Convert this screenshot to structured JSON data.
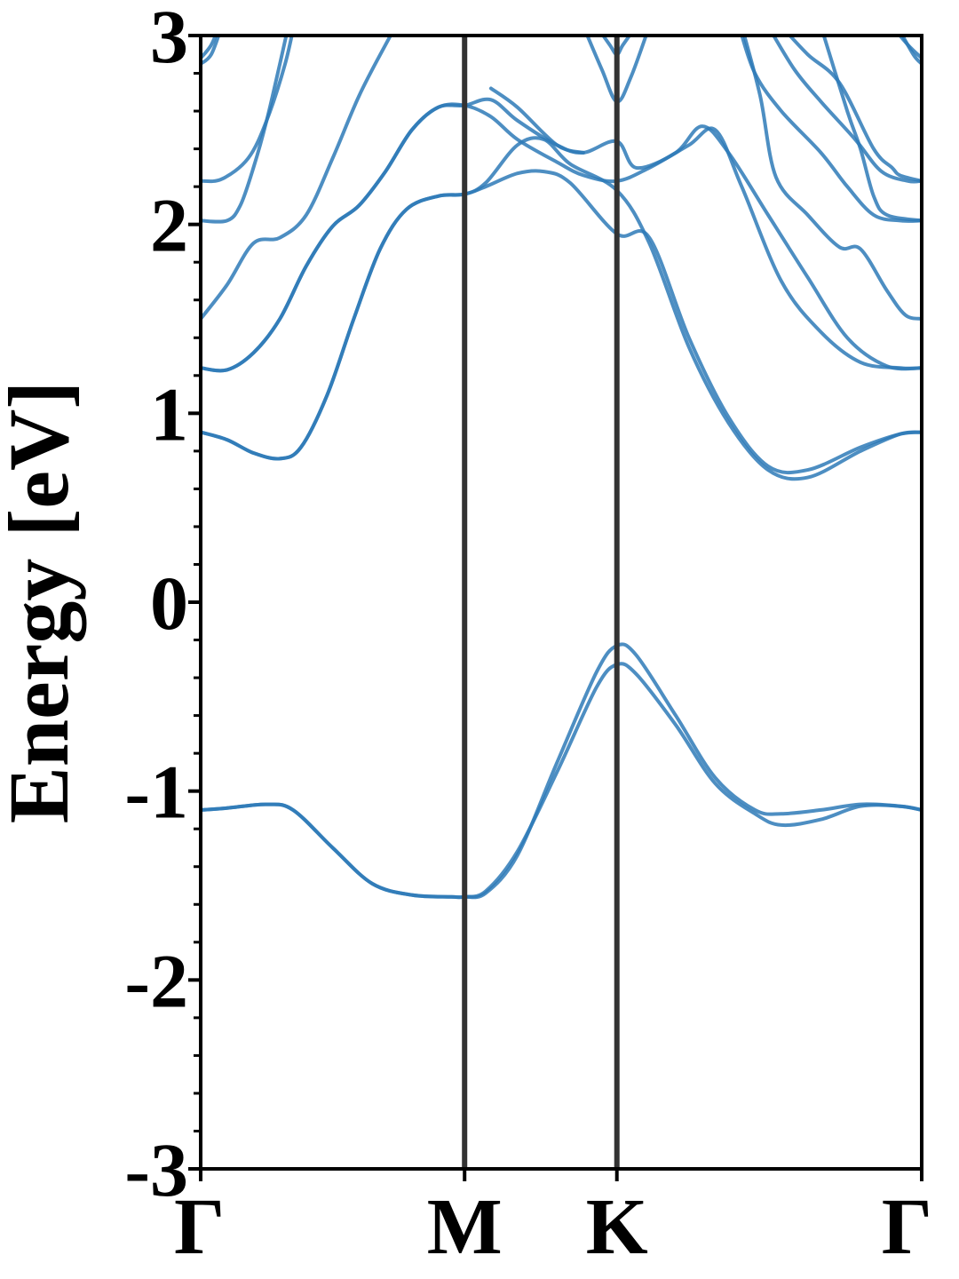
{
  "chart_data": {
    "type": "line",
    "title": "",
    "xlabel": "",
    "ylabel": "Energy [eV]",
    "ylim": [
      -3,
      3
    ],
    "yticks": [
      -3,
      -2,
      -1,
      0,
      1,
      2,
      3
    ],
    "ytick_labels": [
      "-3",
      "-2",
      "-1",
      "0",
      "1",
      "2",
      "3"
    ],
    "x_range": [
      0,
      2.7
    ],
    "kpoints": [
      {
        "label": "Γ",
        "x": 0
      },
      {
        "label": "M",
        "x": 1.0
      },
      {
        "label": "K",
        "x": 1.577
      },
      {
        "label": "Γ",
        "x": 2.732
      }
    ],
    "grid": false,
    "line_color": "#2e7ab7",
    "divider_color": "#333333",
    "series": [
      {
        "values": [
          [
            0,
            -1.1
          ],
          [
            0.1,
            -1.09
          ],
          [
            0.25,
            -1.07
          ],
          [
            0.35,
            -1.1
          ],
          [
            0.5,
            -1.3
          ],
          [
            0.65,
            -1.49
          ],
          [
            0.8,
            -1.55
          ],
          [
            0.95,
            -1.56
          ],
          [
            1.0,
            -1.56
          ],
          [
            1.08,
            -1.53
          ],
          [
            1.2,
            -1.32
          ],
          [
            1.35,
            -0.9
          ],
          [
            1.5,
            -0.45
          ],
          [
            1.577,
            -0.33
          ],
          [
            1.65,
            -0.38
          ],
          [
            1.8,
            -0.65
          ],
          [
            1.95,
            -0.96
          ],
          [
            2.1,
            -1.12
          ],
          [
            2.2,
            -1.18
          ],
          [
            2.35,
            -1.15
          ],
          [
            2.5,
            -1.08
          ],
          [
            2.65,
            -1.08
          ],
          [
            2.732,
            -1.1
          ]
        ]
      },
      {
        "values": [
          [
            0,
            -1.1
          ],
          [
            0.1,
            -1.09
          ],
          [
            0.25,
            -1.07
          ],
          [
            0.35,
            -1.1
          ],
          [
            0.5,
            -1.3
          ],
          [
            0.65,
            -1.49
          ],
          [
            0.8,
            -1.55
          ],
          [
            0.95,
            -1.56
          ],
          [
            1.0,
            -1.56
          ],
          [
            1.08,
            -1.54
          ],
          [
            1.2,
            -1.34
          ],
          [
            1.35,
            -0.85
          ],
          [
            1.5,
            -0.37
          ],
          [
            1.577,
            -0.23
          ],
          [
            1.65,
            -0.28
          ],
          [
            1.8,
            -0.6
          ],
          [
            1.95,
            -0.93
          ],
          [
            2.1,
            -1.1
          ],
          [
            2.2,
            -1.12
          ],
          [
            2.35,
            -1.1
          ],
          [
            2.5,
            -1.07
          ],
          [
            2.65,
            -1.08
          ],
          [
            2.732,
            -1.1
          ]
        ]
      },
      {
        "values": [
          [
            0,
            0.9
          ],
          [
            0.1,
            0.86
          ],
          [
            0.2,
            0.79
          ],
          [
            0.3,
            0.76
          ],
          [
            0.38,
            0.82
          ],
          [
            0.48,
            1.1
          ],
          [
            0.58,
            1.5
          ],
          [
            0.68,
            1.87
          ],
          [
            0.78,
            2.08
          ],
          [
            0.9,
            2.15
          ],
          [
            1.0,
            2.16
          ],
          [
            1.08,
            2.2
          ],
          [
            1.2,
            2.27
          ],
          [
            1.3,
            2.28
          ],
          [
            1.4,
            2.22
          ],
          [
            1.577,
            1.95
          ],
          [
            1.7,
            1.93
          ],
          [
            1.85,
            1.4
          ],
          [
            2.0,
            0.98
          ],
          [
            2.15,
            0.72
          ],
          [
            2.3,
            0.7
          ],
          [
            2.5,
            0.82
          ],
          [
            2.65,
            0.89
          ],
          [
            2.732,
            0.9
          ]
        ]
      },
      {
        "values": [
          [
            0,
            0.9
          ],
          [
            0.1,
            0.86
          ],
          [
            0.2,
            0.79
          ],
          [
            0.3,
            0.76
          ],
          [
            0.38,
            0.82
          ],
          [
            0.48,
            1.1
          ],
          [
            0.58,
            1.5
          ],
          [
            0.68,
            1.87
          ],
          [
            0.78,
            2.08
          ],
          [
            0.9,
            2.15
          ],
          [
            1.0,
            2.16
          ],
          [
            1.08,
            2.22
          ],
          [
            1.2,
            2.42
          ],
          [
            1.3,
            2.45
          ],
          [
            1.4,
            2.32
          ],
          [
            1.577,
            2.18
          ],
          [
            1.7,
            1.9
          ],
          [
            1.85,
            1.35
          ],
          [
            2.0,
            0.95
          ],
          [
            2.15,
            0.7
          ],
          [
            2.3,
            0.66
          ],
          [
            2.5,
            0.8
          ],
          [
            2.65,
            0.89
          ],
          [
            2.732,
            0.9
          ]
        ]
      },
      {
        "values": [
          [
            0,
            1.24
          ],
          [
            0.1,
            1.23
          ],
          [
            0.2,
            1.32
          ],
          [
            0.3,
            1.5
          ],
          [
            0.4,
            1.78
          ],
          [
            0.5,
            1.99
          ],
          [
            0.6,
            2.1
          ],
          [
            0.7,
            2.28
          ],
          [
            0.8,
            2.5
          ],
          [
            0.9,
            2.62
          ],
          [
            1.0,
            2.63
          ],
          [
            1.1,
            2.57
          ],
          [
            1.2,
            2.45
          ],
          [
            1.35,
            2.33
          ],
          [
            1.45,
            2.26
          ],
          [
            1.577,
            2.23
          ],
          [
            1.7,
            2.3
          ],
          [
            1.85,
            2.42
          ],
          [
            1.95,
            2.5
          ],
          [
            2.05,
            2.2
          ],
          [
            2.2,
            1.7
          ],
          [
            2.35,
            1.43
          ],
          [
            2.5,
            1.27
          ],
          [
            2.65,
            1.24
          ],
          [
            2.732,
            1.24
          ]
        ]
      },
      {
        "values": [
          [
            0,
            1.24
          ],
          [
            0.1,
            1.23
          ],
          [
            0.2,
            1.32
          ],
          [
            0.3,
            1.5
          ],
          [
            0.4,
            1.78
          ],
          [
            0.5,
            1.99
          ],
          [
            0.6,
            2.1
          ],
          [
            0.7,
            2.28
          ],
          [
            0.8,
            2.5
          ],
          [
            0.9,
            2.62
          ],
          [
            1.0,
            2.63
          ],
          [
            1.1,
            2.66
          ],
          [
            1.2,
            2.55
          ],
          [
            1.35,
            2.42
          ],
          [
            1.45,
            2.38
          ],
          [
            1.577,
            2.44
          ],
          [
            1.65,
            2.3
          ],
          [
            1.8,
            2.38
          ],
          [
            1.9,
            2.52
          ],
          [
            2.0,
            2.38
          ],
          [
            2.15,
            2.05
          ],
          [
            2.3,
            1.72
          ],
          [
            2.45,
            1.4
          ],
          [
            2.6,
            1.25
          ],
          [
            2.732,
            1.24
          ]
        ]
      },
      {
        "values": [
          [
            0,
            1.5
          ],
          [
            0.1,
            1.68
          ],
          [
            0.2,
            1.9
          ],
          [
            0.3,
            1.93
          ],
          [
            0.4,
            2.05
          ],
          [
            0.5,
            2.35
          ],
          [
            0.6,
            2.68
          ],
          [
            0.7,
            2.95
          ],
          [
            0.76,
            3.1
          ]
        ]
      },
      {
        "values": [
          [
            0,
            2.02
          ],
          [
            0.1,
            2.02
          ],
          [
            0.15,
            2.1
          ],
          [
            0.2,
            2.3
          ],
          [
            0.25,
            2.55
          ],
          [
            0.3,
            2.85
          ],
          [
            0.34,
            3.1
          ]
        ]
      },
      {
        "values": [
          [
            0,
            2.23
          ],
          [
            0.08,
            2.24
          ],
          [
            0.18,
            2.35
          ],
          [
            0.25,
            2.55
          ],
          [
            0.32,
            2.85
          ],
          [
            0.36,
            3.1
          ]
        ]
      },
      {
        "values": [
          [
            1.1,
            2.72
          ],
          [
            1.2,
            2.62
          ],
          [
            1.35,
            2.42
          ],
          [
            1.45,
            2.38
          ]
        ]
      },
      {
        "values": [
          [
            0,
            2.85
          ],
          [
            0.04,
            2.9
          ],
          [
            0.08,
            3.05
          ]
        ]
      },
      {
        "values": [
          [
            0,
            2.88
          ],
          [
            0.04,
            2.95
          ],
          [
            0.07,
            3.05
          ]
        ]
      },
      {
        "values": [
          [
            1.45,
            3.05
          ],
          [
            1.52,
            2.82
          ],
          [
            1.577,
            2.65
          ],
          [
            1.63,
            2.78
          ],
          [
            1.7,
            3.05
          ]
        ]
      },
      {
        "values": [
          [
            1.5,
            3.05
          ],
          [
            1.55,
            2.95
          ],
          [
            1.577,
            2.9
          ],
          [
            1.6,
            2.95
          ],
          [
            1.65,
            3.05
          ]
        ]
      },
      {
        "values": [
          [
            2.04,
            3.05
          ],
          [
            2.1,
            2.8
          ],
          [
            2.2,
            2.6
          ],
          [
            2.35,
            2.38
          ],
          [
            2.45,
            2.2
          ],
          [
            2.55,
            2.05
          ],
          [
            2.65,
            2.02
          ],
          [
            2.732,
            2.02
          ]
        ]
      },
      {
        "values": [
          [
            2.05,
            3.05
          ],
          [
            2.12,
            2.68
          ],
          [
            2.18,
            2.25
          ],
          [
            2.3,
            2.05
          ],
          [
            2.42,
            1.88
          ],
          [
            2.5,
            1.87
          ],
          [
            2.6,
            1.65
          ],
          [
            2.67,
            1.52
          ],
          [
            2.732,
            1.5
          ]
        ]
      },
      {
        "values": [
          [
            2.15,
            3.05
          ],
          [
            2.25,
            2.82
          ],
          [
            2.35,
            2.65
          ],
          [
            2.48,
            2.45
          ],
          [
            2.58,
            2.28
          ],
          [
            2.68,
            2.23
          ],
          [
            2.732,
            2.23
          ]
        ]
      },
      {
        "values": [
          [
            2.2,
            3.05
          ],
          [
            2.3,
            2.9
          ],
          [
            2.42,
            2.75
          ],
          [
            2.55,
            2.4
          ],
          [
            2.62,
            2.3
          ],
          [
            2.65,
            2.26
          ],
          [
            2.732,
            2.23
          ]
        ]
      },
      {
        "values": [
          [
            2.35,
            3.05
          ],
          [
            2.45,
            2.6
          ],
          [
            2.5,
            2.4
          ],
          [
            2.55,
            2.15
          ],
          [
            2.6,
            2.05
          ],
          [
            2.732,
            2.02
          ]
        ]
      },
      {
        "values": [
          [
            2.62,
            3.05
          ],
          [
            2.68,
            2.95
          ],
          [
            2.732,
            2.88
          ]
        ]
      },
      {
        "values": [
          [
            2.64,
            3.05
          ],
          [
            2.7,
            2.9
          ],
          [
            2.732,
            2.85
          ]
        ]
      }
    ]
  }
}
